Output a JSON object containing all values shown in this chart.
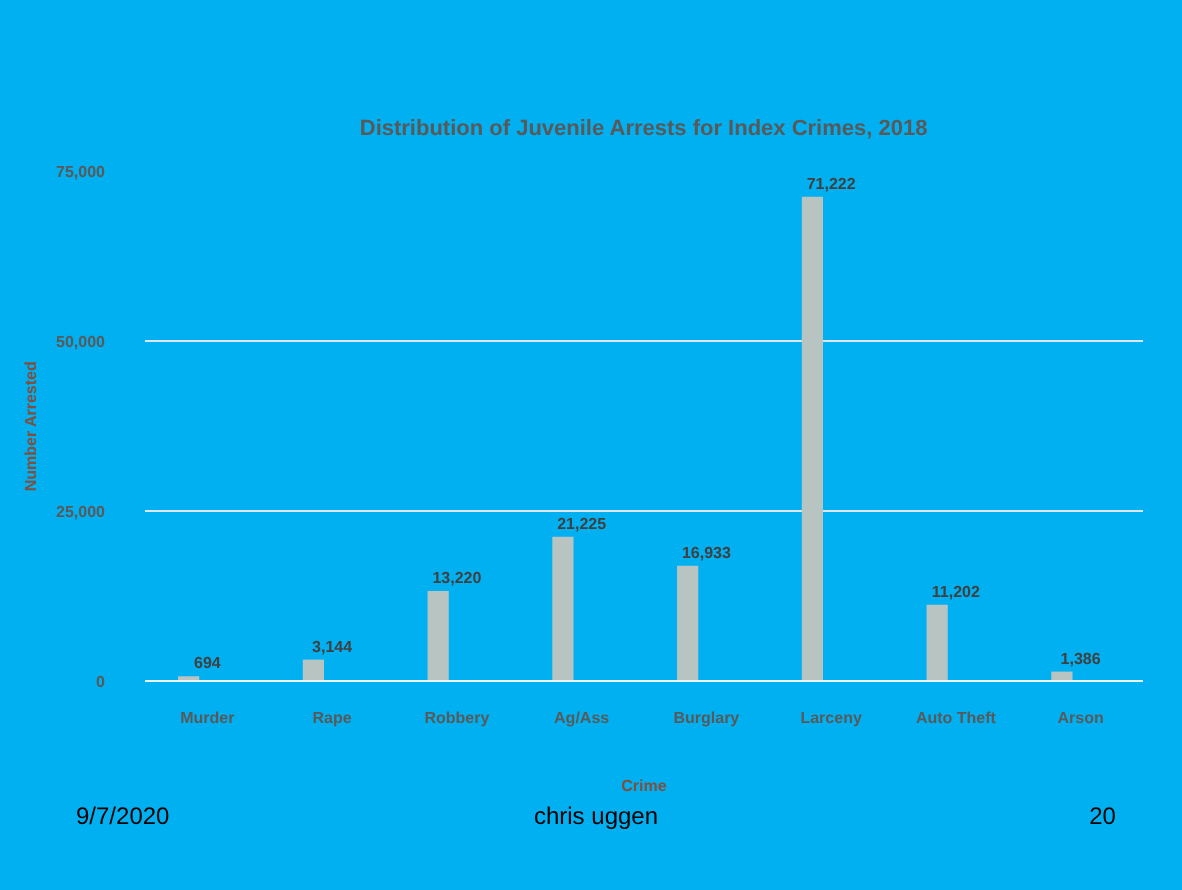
{
  "chart_data": {
    "type": "bar",
    "title": "Distribution of Juvenile Arrests for Index Crimes, 2018",
    "xlabel": "Crime",
    "ylabel": "Number Arrested",
    "categories": [
      "Murder",
      "Rape",
      "Robbery",
      "Ag/Ass",
      "Burglary",
      "Larceny",
      "Auto Theft",
      "Arson"
    ],
    "values": [
      694,
      3144,
      13220,
      21225,
      16933,
      71222,
      11202,
      1386
    ],
    "value_labels": [
      "694",
      "3,144",
      "13,220",
      "21,225",
      "16,933",
      "71,222",
      "11,202",
      "1,386"
    ],
    "color": "#b8c4c2",
    "ylim": [
      0,
      75000
    ],
    "yticks": [
      {
        "value": 0,
        "label": "0"
      },
      {
        "value": 25000,
        "label": "25,000"
      },
      {
        "value": 50000,
        "label": "50,000"
      },
      {
        "value": 75000,
        "label": "75,000"
      }
    ],
    "grid": "y",
    "annotations": [
      "9/7/2020",
      "chris uggen",
      "20"
    ]
  }
}
